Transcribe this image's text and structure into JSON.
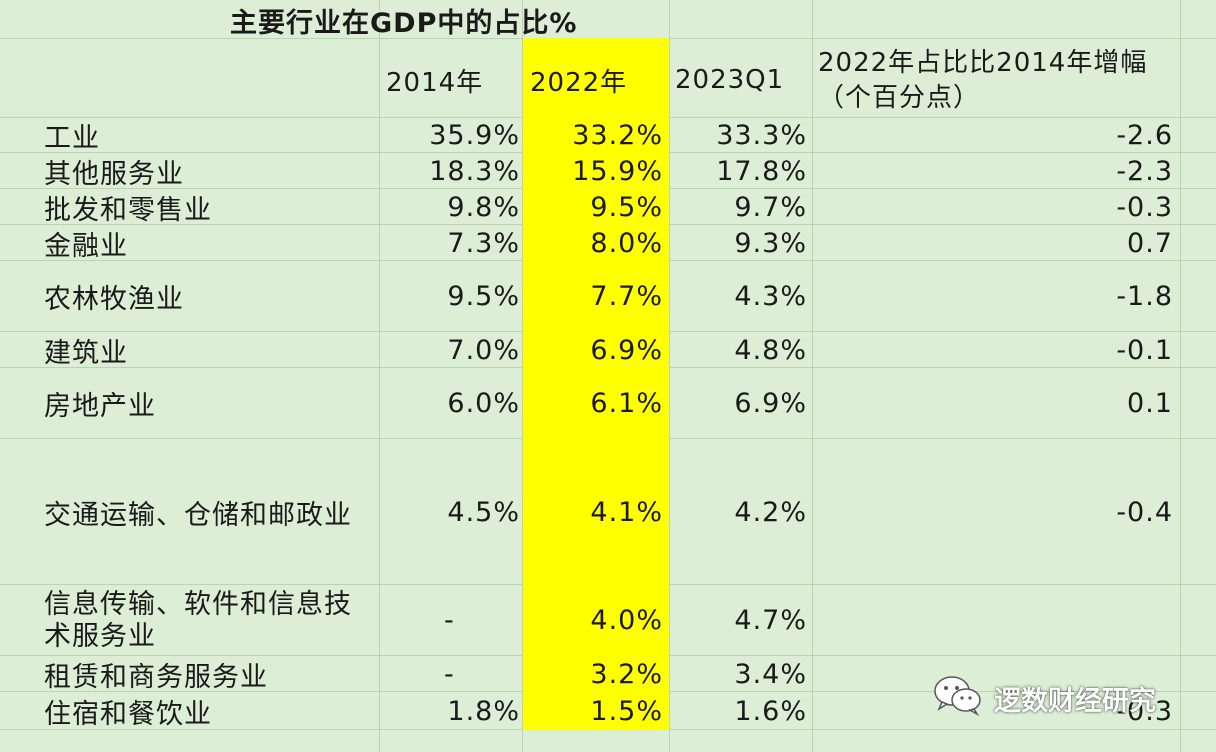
{
  "title": "主要行业在GDP中的占比%",
  "headers": {
    "y2014": "2014年",
    "y2022": "2022年",
    "q2023": "2023Q1",
    "change_line1": "2022年占比比2014年增幅",
    "change_line2": "（个百分点）"
  },
  "rows": [
    {
      "industry": "工业",
      "y2014": "35.9%",
      "y2022": "33.2%",
      "q2023": "33.3%",
      "change": "-2.6"
    },
    {
      "industry": "其他服务业",
      "y2014": "18.3%",
      "y2022": "15.9%",
      "q2023": "17.8%",
      "change": "-2.3"
    },
    {
      "industry": "批发和零售业",
      "y2014": "9.8%",
      "y2022": "9.5%",
      "q2023": "9.7%",
      "change": "-0.3"
    },
    {
      "industry": "金融业",
      "y2014": "7.3%",
      "y2022": "8.0%",
      "q2023": "9.3%",
      "change": "0.7"
    },
    {
      "industry": "农林牧渔业",
      "y2014": "9.5%",
      "y2022": "7.7%",
      "q2023": "4.3%",
      "change": "-1.8"
    },
    {
      "industry": "建筑业",
      "y2014": "7.0%",
      "y2022": "6.9%",
      "q2023": "4.8%",
      "change": "-0.1"
    },
    {
      "industry": "房地产业",
      "y2014": "6.0%",
      "y2022": "6.1%",
      "q2023": "6.9%",
      "change": "0.1"
    },
    {
      "industry": "交通运输、仓储和邮政业",
      "y2014": "4.5%",
      "y2022": "4.1%",
      "q2023": "4.2%",
      "change": "-0.4"
    },
    {
      "industry": "信息传输、软件和信息技术服务业",
      "y2014": "-",
      "y2022": "4.0%",
      "q2023": "4.7%",
      "change": ""
    },
    {
      "industry": "租赁和商务服务业",
      "y2014": "-",
      "y2022": "3.2%",
      "q2023": "3.4%",
      "change": ""
    },
    {
      "industry": "住宿和餐饮业",
      "y2014": "1.8%",
      "y2022": "1.5%",
      "q2023": "1.6%",
      "change": "-0.3"
    }
  ],
  "watermark": {
    "icon": "wechat-icon",
    "text": "逻数财经研究"
  },
  "colors": {
    "sheet_bg": "#dcefd6",
    "highlight": "#ffff00",
    "grid": "#b9d3b3"
  }
}
